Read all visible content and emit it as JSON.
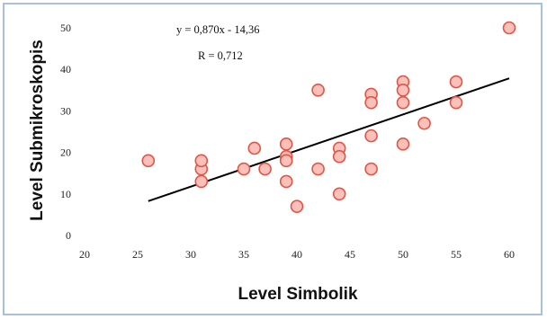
{
  "chart_data": {
    "type": "scatter",
    "title": "",
    "xlabel": "Level Simbolik",
    "ylabel": "Level Submikroskopis",
    "xlim": [
      20,
      60
    ],
    "ylim": [
      0,
      50
    ],
    "x_ticks": [
      "20",
      "25",
      "30",
      "35",
      "40",
      "45",
      "50",
      "55",
      "60"
    ],
    "y_ticks": [
      "0",
      "10",
      "20",
      "30",
      "40",
      "50"
    ],
    "grid": false,
    "legend": "none",
    "series": [
      {
        "points": [
          [
            26,
            18
          ],
          [
            31,
            16
          ],
          [
            31,
            18
          ],
          [
            31,
            13
          ],
          [
            35,
            16
          ],
          [
            36,
            21
          ],
          [
            37,
            16
          ],
          [
            39,
            22
          ],
          [
            39,
            19
          ],
          [
            39,
            18
          ],
          [
            39,
            13
          ],
          [
            40,
            7
          ],
          [
            42,
            35
          ],
          [
            42,
            16
          ],
          [
            44,
            21
          ],
          [
            44,
            19
          ],
          [
            44,
            10
          ],
          [
            47,
            34
          ],
          [
            47,
            32
          ],
          [
            47,
            24
          ],
          [
            47,
            16
          ],
          [
            50,
            37
          ],
          [
            50,
            35
          ],
          [
            50,
            32
          ],
          [
            50,
            22
          ],
          [
            52,
            27
          ],
          [
            55,
            37
          ],
          [
            55,
            32
          ],
          [
            60,
            50
          ]
        ]
      }
    ],
    "trendline": {
      "x": [
        26,
        60
      ],
      "y": [
        8.26,
        37.84
      ]
    },
    "annotations": {
      "equation": "y = 0,870x - 14,36",
      "r_value": "R = 0,712"
    },
    "colors": {
      "marker_fill": "#fcc0bb",
      "marker_stroke": "#e05545",
      "trendline": "#000000",
      "frame": "#a8c0dc"
    }
  }
}
